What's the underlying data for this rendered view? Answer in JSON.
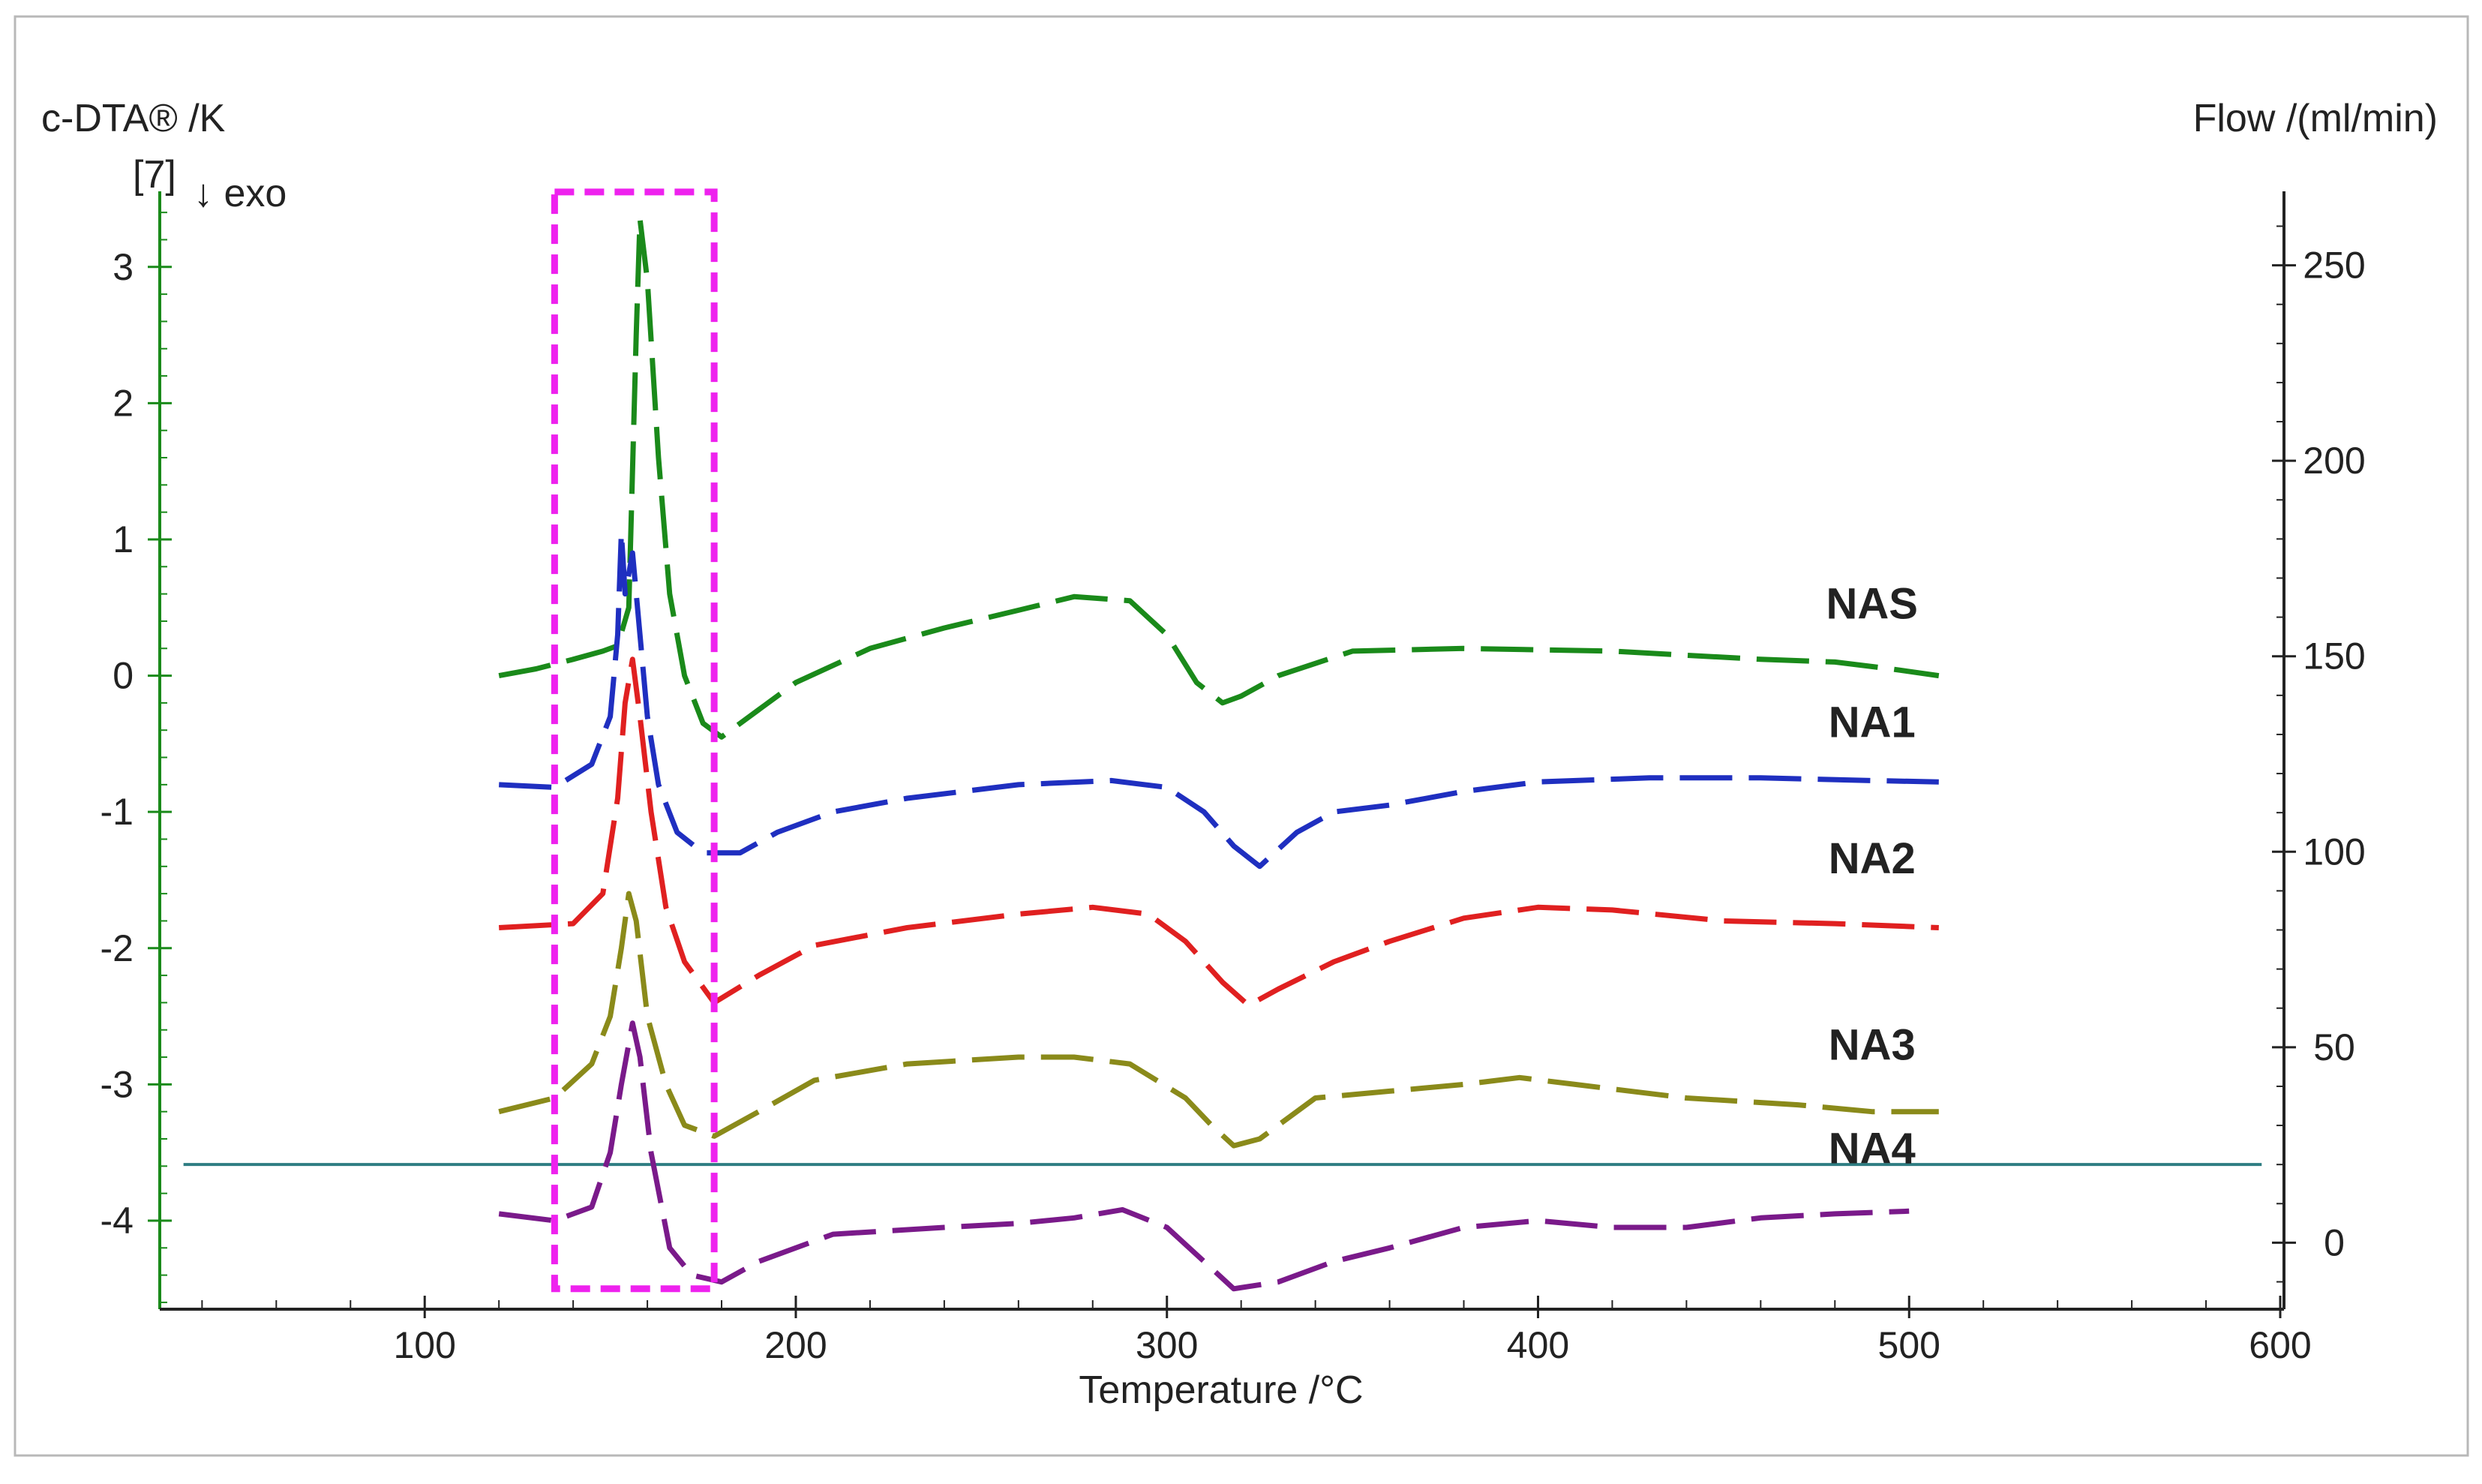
{
  "chart_data": {
    "type": "line",
    "title": "",
    "xlabel": "Temperature /°C",
    "ylabel": "c-DTA® /K",
    "ylabel_note": "[7]",
    "exo_note": "↓ exo",
    "y2label": "Flow /(ml/min)",
    "xlim": [
      28,
      600
    ],
    "ylim": [
      -4.65,
      3.5
    ],
    "y2lim": [
      -17,
      267
    ],
    "x_ticks": [
      100,
      200,
      300,
      400,
      500,
      600
    ],
    "y_ticks": [
      3,
      2,
      1,
      0,
      -1,
      -2,
      -3,
      -4
    ],
    "y2_ticks": [
      250,
      200,
      150,
      100,
      50,
      0
    ],
    "highlight_box": {
      "x_range": [
        135,
        178
      ],
      "y_range": [
        -4.5,
        3.55
      ],
      "color": "#ee22ee"
    },
    "flow_line": {
      "value": 20,
      "x_range": [
        35,
        595
      ],
      "color": "#2e7d82"
    },
    "series": [
      {
        "name": "NAS",
        "color": "#1a8a1a",
        "points": [
          [
            120,
            0.0
          ],
          [
            130,
            0.05
          ],
          [
            140,
            0.12
          ],
          [
            148,
            0.18
          ],
          [
            152,
            0.22
          ],
          [
            155,
            0.5
          ],
          [
            157,
            2.5
          ],
          [
            158,
            3.35
          ],
          [
            160,
            2.9
          ],
          [
            163,
            1.6
          ],
          [
            166,
            0.6
          ],
          [
            170,
            0.0
          ],
          [
            175,
            -0.35
          ],
          [
            180,
            -0.45
          ],
          [
            190,
            -0.25
          ],
          [
            200,
            -0.05
          ],
          [
            220,
            0.2
          ],
          [
            240,
            0.35
          ],
          [
            260,
            0.48
          ],
          [
            275,
            0.58
          ],
          [
            290,
            0.55
          ],
          [
            300,
            0.3
          ],
          [
            308,
            -0.05
          ],
          [
            315,
            -0.2
          ],
          [
            320,
            -0.15
          ],
          [
            330,
            0.0
          ],
          [
            350,
            0.18
          ],
          [
            380,
            0.2
          ],
          [
            420,
            0.18
          ],
          [
            460,
            0.12
          ],
          [
            480,
            0.1
          ],
          [
            495,
            0.05
          ],
          [
            508,
            0.0
          ]
        ]
      },
      {
        "name": "NA1",
        "color": "#1f2fc0",
        "points": [
          [
            120,
            -0.8
          ],
          [
            135,
            -0.82
          ],
          [
            145,
            -0.65
          ],
          [
            150,
            -0.3
          ],
          [
            152,
            0.3
          ],
          [
            153,
            1.05
          ],
          [
            154,
            0.6
          ],
          [
            156,
            0.9
          ],
          [
            158,
            0.3
          ],
          [
            160,
            -0.3
          ],
          [
            163,
            -0.8
          ],
          [
            168,
            -1.15
          ],
          [
            175,
            -1.3
          ],
          [
            185,
            -1.3
          ],
          [
            195,
            -1.15
          ],
          [
            210,
            -1.0
          ],
          [
            230,
            -0.9
          ],
          [
            260,
            -0.8
          ],
          [
            285,
            -0.77
          ],
          [
            300,
            -0.82
          ],
          [
            310,
            -1.0
          ],
          [
            318,
            -1.25
          ],
          [
            325,
            -1.4
          ],
          [
            335,
            -1.15
          ],
          [
            345,
            -1.0
          ],
          [
            360,
            -0.95
          ],
          [
            380,
            -0.85
          ],
          [
            400,
            -0.78
          ],
          [
            430,
            -0.75
          ],
          [
            460,
            -0.75
          ],
          [
            490,
            -0.77
          ],
          [
            508,
            -0.78
          ]
        ]
      },
      {
        "name": "NA2",
        "color": "#e02020",
        "points": [
          [
            120,
            -1.85
          ],
          [
            140,
            -1.82
          ],
          [
            148,
            -1.6
          ],
          [
            152,
            -0.9
          ],
          [
            154,
            -0.2
          ],
          [
            156,
            0.12
          ],
          [
            158,
            -0.3
          ],
          [
            161,
            -1.0
          ],
          [
            165,
            -1.7
          ],
          [
            170,
            -2.1
          ],
          [
            178,
            -2.4
          ],
          [
            190,
            -2.2
          ],
          [
            205,
            -1.98
          ],
          [
            230,
            -1.85
          ],
          [
            260,
            -1.75
          ],
          [
            280,
            -1.7
          ],
          [
            295,
            -1.75
          ],
          [
            305,
            -1.95
          ],
          [
            315,
            -2.25
          ],
          [
            322,
            -2.42
          ],
          [
            330,
            -2.3
          ],
          [
            345,
            -2.1
          ],
          [
            360,
            -1.95
          ],
          [
            380,
            -1.78
          ],
          [
            400,
            -1.7
          ],
          [
            420,
            -1.72
          ],
          [
            450,
            -1.8
          ],
          [
            480,
            -1.82
          ],
          [
            508,
            -1.85
          ]
        ]
      },
      {
        "name": "NA3",
        "color": "#8a8a1a",
        "points": [
          [
            120,
            -3.2
          ],
          [
            135,
            -3.1
          ],
          [
            145,
            -2.85
          ],
          [
            150,
            -2.5
          ],
          [
            153,
            -2.0
          ],
          [
            155,
            -1.6
          ],
          [
            157,
            -1.8
          ],
          [
            160,
            -2.5
          ],
          [
            165,
            -3.0
          ],
          [
            170,
            -3.3
          ],
          [
            178,
            -3.38
          ],
          [
            190,
            -3.2
          ],
          [
            205,
            -2.97
          ],
          [
            230,
            -2.85
          ],
          [
            260,
            -2.8
          ],
          [
            275,
            -2.8
          ],
          [
            290,
            -2.85
          ],
          [
            305,
            -3.1
          ],
          [
            312,
            -3.3
          ],
          [
            318,
            -3.45
          ],
          [
            325,
            -3.4
          ],
          [
            340,
            -3.1
          ],
          [
            360,
            -3.05
          ],
          [
            380,
            -3.0
          ],
          [
            395,
            -2.95
          ],
          [
            410,
            -3.0
          ],
          [
            440,
            -3.1
          ],
          [
            470,
            -3.15
          ],
          [
            490,
            -3.2
          ],
          [
            508,
            -3.2
          ]
        ]
      },
      {
        "name": "NA4",
        "color": "#7a1a8a",
        "points": [
          [
            120,
            -3.95
          ],
          [
            135,
            -4.0
          ],
          [
            145,
            -3.9
          ],
          [
            150,
            -3.5
          ],
          [
            153,
            -3.0
          ],
          [
            156,
            -2.55
          ],
          [
            158,
            -2.8
          ],
          [
            161,
            -3.5
          ],
          [
            166,
            -4.2
          ],
          [
            172,
            -4.4
          ],
          [
            180,
            -4.45
          ],
          [
            190,
            -4.3
          ],
          [
            210,
            -4.1
          ],
          [
            240,
            -4.05
          ],
          [
            260,
            -4.02
          ],
          [
            275,
            -3.98
          ],
          [
            288,
            -3.92
          ],
          [
            300,
            -4.05
          ],
          [
            310,
            -4.3
          ],
          [
            318,
            -4.5
          ],
          [
            330,
            -4.45
          ],
          [
            345,
            -4.3
          ],
          [
            360,
            -4.2
          ],
          [
            380,
            -4.05
          ],
          [
            400,
            -4.0
          ],
          [
            420,
            -4.05
          ],
          [
            440,
            -4.05
          ],
          [
            460,
            -3.98
          ],
          [
            480,
            -3.95
          ],
          [
            500,
            -3.93
          ]
        ]
      }
    ],
    "series_labels": [
      {
        "name": "NAS",
        "x": 490,
        "y": 0.42
      },
      {
        "name": "NA1",
        "x": 490,
        "y": -0.45
      },
      {
        "name": "NA2",
        "x": 490,
        "y": -1.45
      },
      {
        "name": "NA3",
        "x": 490,
        "y": -2.82
      },
      {
        "name": "NA4",
        "x": 490,
        "y": -3.58
      }
    ]
  }
}
